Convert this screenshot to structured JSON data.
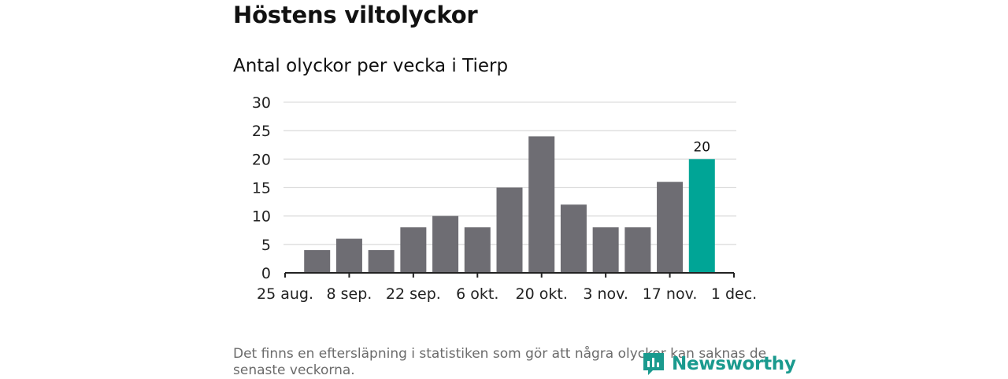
{
  "title": "Höstens viltolyckor",
  "subtitle": "Antal olyckor per vecka i Tierp",
  "note": "Det finns en eftersläpning i statistiken som gör att några olyckor kan saknas de senaste veckorna.",
  "logo": {
    "text": "Newsworthy",
    "icon": "newsworthy-logo-icon"
  },
  "colors": {
    "bar": "#6e6d73",
    "highlight": "#00a596",
    "grid": "#dddddd",
    "axis": "#222222"
  },
  "chart_data": {
    "type": "bar",
    "title": "Antal olyckor per vecka i Tierp",
    "xlabel": "",
    "ylabel": "",
    "ylim": [
      0,
      30
    ],
    "yticks": [
      0,
      5,
      10,
      15,
      20,
      25,
      30
    ],
    "grid": true,
    "xticks": [
      "25 aug.",
      "8 sep.",
      "22 sep.",
      "6 okt.",
      "20 okt.",
      "3 nov.",
      "17 nov.",
      "1 dec."
    ],
    "values": [
      4,
      6,
      4,
      8,
      10,
      8,
      15,
      24,
      12,
      8,
      8,
      16,
      20
    ],
    "highlight_index": 12,
    "data_labels": {
      "12": "20"
    }
  }
}
